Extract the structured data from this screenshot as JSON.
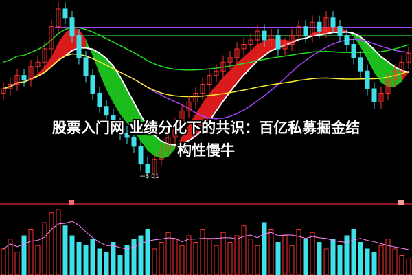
{
  "headline": {
    "line1": "股票入门网 业绩分化下的共识：百亿私募掘金结",
    "line2": "构性慢牛"
  },
  "chart_data": {
    "type": "candlestick",
    "title": "",
    "low_marker_label": "←8.01",
    "ylim": [
      8.0,
      12.0
    ],
    "closes": [
      10.0,
      10.1,
      10.3,
      10.2,
      10.5,
      10.6,
      10.9,
      11.4,
      11.8,
      11.6,
      11.2,
      10.7,
      10.3,
      9.9,
      9.6,
      9.4,
      9.2,
      9.0,
      8.9,
      8.7,
      8.3,
      8.1,
      8.4,
      8.6,
      8.9,
      9.2,
      9.5,
      9.7,
      9.9,
      10.1,
      10.3,
      10.4,
      10.6,
      10.7,
      10.9,
      11.0,
      11.1,
      11.3,
      11.1,
      11.2,
      10.9,
      11.0,
      11.2,
      11.4,
      11.2,
      11.5,
      11.3,
      11.6,
      11.4,
      11.2,
      11.0,
      10.7,
      10.4,
      10.0,
      9.7,
      9.9,
      10.2,
      10.4,
      10.6,
      10.8
    ],
    "volumes": [
      40,
      55,
      35,
      60,
      70,
      45,
      80,
      95,
      100,
      75,
      60,
      50,
      45,
      55,
      40,
      35,
      50,
      30,
      45,
      55,
      60,
      70,
      40,
      50,
      65,
      55,
      45,
      60,
      50,
      70,
      55,
      45,
      65,
      50,
      60,
      75,
      55,
      45,
      80,
      70,
      50,
      60,
      45,
      70,
      55,
      65,
      50,
      40,
      55,
      45,
      60,
      70,
      50,
      40,
      35,
      45,
      55,
      40,
      30,
      25
    ],
    "colors": {
      "up": "#ff3030",
      "down": "#40e0e8",
      "ma_short": "#ffffff",
      "ma_mid": "#ffee33",
      "ma_long": "#22dd22",
      "resistance": "#aa44ff",
      "band_up": "#ff2020",
      "band_down": "#22dd22",
      "volume_ma": "#ff88ff"
    }
  }
}
